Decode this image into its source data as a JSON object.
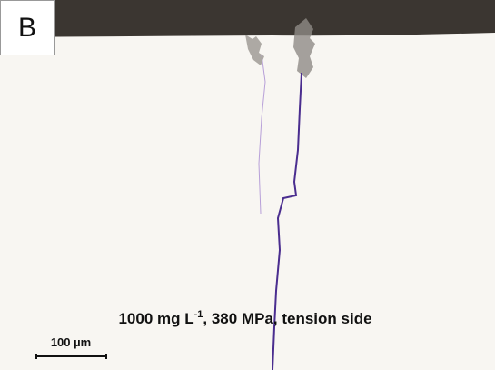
{
  "panel_label": "B",
  "caption": {
    "before": "1000 mg L",
    "superscript": "-1",
    "after": ", 380 MPa, tension side"
  },
  "scale_bar": {
    "label": "100 µm"
  }
}
